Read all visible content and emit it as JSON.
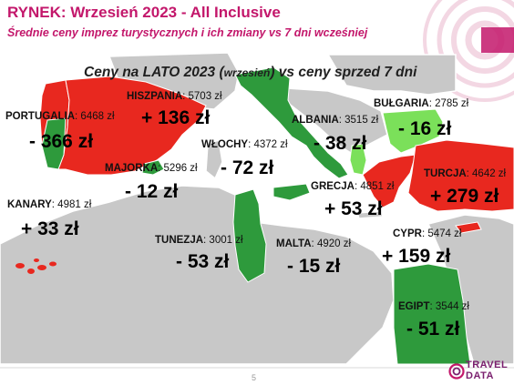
{
  "slide": {
    "title": "RYNEK: Wrzesień 2023 - All Inclusive",
    "subtitle": "Średnie ceny imprez turystycznych i ich zmiany vs 7 dni wcześniej",
    "headline_part1": "Ceny na LATO 2023 (",
    "headline_small": "wrzesień",
    "headline_part2": ") vs ceny sprzed 7 dni",
    "page_number": "5"
  },
  "destinations": [
    {
      "id": "hiszpania",
      "name": "HISZPANIA",
      "price": "5703 zł",
      "change": "+ 136 zł",
      "trend": "up"
    },
    {
      "id": "portugalia",
      "name": "PORTUGALIA",
      "price": "6468 zł",
      "change": "- 366 zł",
      "trend": "down"
    },
    {
      "id": "wlochy",
      "name": "WŁOCHY",
      "price": "4372 zł",
      "change": "- 72 zł",
      "trend": "down"
    },
    {
      "id": "majorka",
      "name": "MAJORKA",
      "price": "5296 zł",
      "change": "- 12 zł",
      "trend": "down"
    },
    {
      "id": "kanary",
      "name": "KANARY",
      "price": "4981 zł",
      "change": "+ 33 zł",
      "trend": "up"
    },
    {
      "id": "albania",
      "name": "ALBANIA",
      "price": "3515 zł",
      "change": "- 38 zł",
      "trend": "down"
    },
    {
      "id": "bulgaria",
      "name": "BUŁGARIA",
      "price": "2785 zł",
      "change": "- 16 zł",
      "trend": "down"
    },
    {
      "id": "turcja",
      "name": "TURCJA",
      "price": "4642 zł",
      "change": "+ 279 zł",
      "trend": "up"
    },
    {
      "id": "grecja",
      "name": "GRECJA",
      "price": "4851 zł",
      "change": "+ 53 zł",
      "trend": "up"
    },
    {
      "id": "tunezja",
      "name": "TUNEZJA",
      "price": "3001 zł",
      "change": "- 53 zł",
      "trend": "down"
    },
    {
      "id": "malta",
      "name": "MALTA",
      "price": "4920 zł",
      "change": "- 15 zł",
      "trend": "down"
    },
    {
      "id": "cypr",
      "name": "CYPR",
      "price": "5474 zł",
      "change": "+ 159 zł",
      "trend": "up"
    },
    {
      "id": "egipt",
      "name": "EGIPT",
      "price": "3544 zł",
      "change": "- 51 zł",
      "trend": "down"
    }
  ],
  "colors": {
    "accent": "#c3176b",
    "increase": "#e8281f",
    "decrease_dark": "#2e9a3c",
    "decrease_light": "#7be05a",
    "land": "#c8c8c8",
    "coast": "#ffffff"
  },
  "logo": {
    "line1": "TRAVEL",
    "line2": "DATA"
  }
}
